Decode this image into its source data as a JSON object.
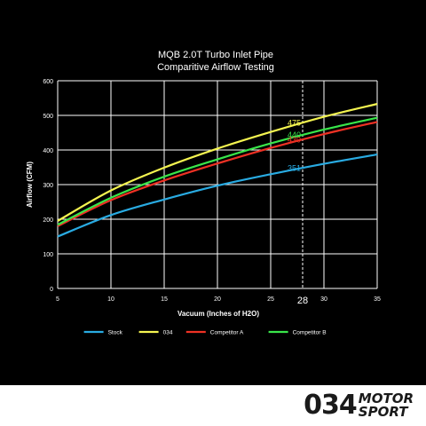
{
  "chart_data": {
    "type": "line",
    "title": "MQB 2.0T Turbo Inlet Pipe",
    "subtitle": "Comparitive Airflow Testing",
    "xlabel": "Vacuum (Inches of H2O)",
    "ylabel": "Airflow (CFM)",
    "xlim": [
      5,
      35
    ],
    "ylim": [
      0,
      600
    ],
    "xticks": [
      "5",
      "10",
      "15",
      "20",
      "25",
      "30",
      "35"
    ],
    "yticks": [
      "0",
      "100",
      "200",
      "300",
      "400",
      "500",
      "600"
    ],
    "grid": true,
    "legend_position": "bottom",
    "x": [
      5,
      10,
      15,
      20,
      25,
      30,
      35
    ],
    "series": [
      {
        "name": "Stock",
        "color": "#29abe2",
        "values": [
          150,
          212,
          257,
          297,
          330,
          360,
          387
        ]
      },
      {
        "name": "034",
        "color": "#f4f450",
        "values": [
          195,
          283,
          349,
          404,
          452,
          496,
          533
        ]
      },
      {
        "name": "Competitor A",
        "color": "#ee3124",
        "values": [
          180,
          255,
          312,
          361,
          406,
          446,
          481
        ]
      },
      {
        "name": "Competitor B",
        "color": "#39e54a",
        "values": [
          184,
          262,
          323,
          373,
          419,
          459,
          493
        ]
      }
    ],
    "reference_line": {
      "x": 28,
      "label": "28"
    },
    "annotations": [
      {
        "series": "034",
        "x": 28,
        "text": "475"
      },
      {
        "series": "Competitor B",
        "x": 28,
        "text": "440"
      },
      {
        "series": "Competitor A",
        "x": 28,
        "text": "430"
      },
      {
        "series": "Stock",
        "x": 28,
        "text": "351"
      }
    ]
  },
  "logo": {
    "number": "034",
    "word1": "MOTOR",
    "word2": "SPORT"
  }
}
